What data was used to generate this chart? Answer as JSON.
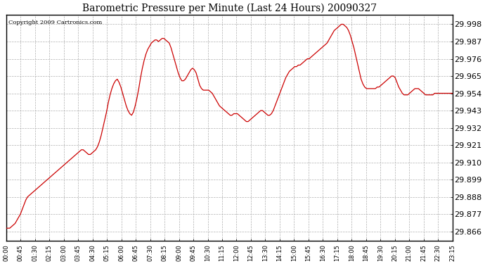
{
  "title": "Barometric Pressure per Minute (Last 24 Hours) 20090327",
  "copyright": "Copyright 2009 Cartronics.com",
  "line_color": "#cc0000",
  "bg_color": "#ffffff",
  "plot_bg_color": "#ffffff",
  "grid_color": "#b0b0b0",
  "yticks": [
    29.866,
    29.877,
    29.888,
    29.899,
    29.91,
    29.921,
    29.932,
    29.943,
    29.954,
    29.965,
    29.976,
    29.987,
    29.998
  ],
  "ylim": [
    29.86,
    30.004
  ],
  "xtick_labels": [
    "00:00",
    "00:45",
    "01:30",
    "02:15",
    "03:00",
    "03:45",
    "04:30",
    "05:15",
    "06:00",
    "06:45",
    "07:30",
    "08:15",
    "09:00",
    "09:45",
    "10:30",
    "11:15",
    "12:00",
    "12:45",
    "13:30",
    "14:15",
    "15:00",
    "15:45",
    "16:30",
    "17:15",
    "18:00",
    "18:45",
    "19:30",
    "20:15",
    "21:00",
    "21:45",
    "22:30",
    "23:15"
  ],
  "pressure_data": [
    29.868,
    29.868,
    29.868,
    29.869,
    29.87,
    29.871,
    29.873,
    29.875,
    29.877,
    29.88,
    29.883,
    29.886,
    29.888,
    29.889,
    29.89,
    29.891,
    29.892,
    29.893,
    29.894,
    29.895,
    29.896,
    29.897,
    29.898,
    29.899,
    29.9,
    29.901,
    29.902,
    29.903,
    29.904,
    29.905,
    29.906,
    29.907,
    29.908,
    29.909,
    29.91,
    29.911,
    29.912,
    29.913,
    29.914,
    29.915,
    29.916,
    29.917,
    29.918,
    29.918,
    29.917,
    29.916,
    29.915,
    29.915,
    29.916,
    29.917,
    29.918,
    29.92,
    29.923,
    29.927,
    29.932,
    29.937,
    29.942,
    29.948,
    29.953,
    29.957,
    29.96,
    29.962,
    29.963,
    29.961,
    29.958,
    29.954,
    29.95,
    29.946,
    29.943,
    29.941,
    29.94,
    29.942,
    29.946,
    29.951,
    29.957,
    29.964,
    29.97,
    29.975,
    29.979,
    29.982,
    29.984,
    29.986,
    29.987,
    29.988,
    29.988,
    29.987,
    29.988,
    29.989,
    29.989,
    29.988,
    29.987,
    29.986,
    29.983,
    29.979,
    29.975,
    29.971,
    29.967,
    29.964,
    29.962,
    29.962,
    29.963,
    29.965,
    29.967,
    29.969,
    29.97,
    29.969,
    29.967,
    29.963,
    29.959,
    29.957,
    29.956,
    29.956,
    29.956,
    29.956,
    29.955,
    29.954,
    29.952,
    29.95,
    29.948,
    29.946,
    29.945,
    29.944,
    29.943,
    29.942,
    29.941,
    29.94,
    29.94,
    29.941,
    29.941,
    29.941,
    29.94,
    29.939,
    29.938,
    29.937,
    29.936,
    29.936,
    29.937,
    29.938,
    29.939,
    29.94,
    29.941,
    29.942,
    29.943,
    29.943,
    29.942,
    29.941,
    29.94,
    29.94,
    29.941,
    29.943,
    29.946,
    29.949,
    29.952,
    29.955,
    29.958,
    29.961,
    29.964,
    29.966,
    29.968,
    29.969,
    29.97,
    29.971,
    29.971,
    29.972,
    29.972,
    29.973,
    29.974,
    29.975,
    29.976,
    29.976,
    29.977,
    29.978,
    29.979,
    29.98,
    29.981,
    29.982,
    29.983,
    29.984,
    29.985,
    29.986,
    29.988,
    29.99,
    29.992,
    29.994,
    29.995,
    29.996,
    29.997,
    29.998,
    29.998,
    29.997,
    29.996,
    29.994,
    29.991,
    29.987,
    29.983,
    29.978,
    29.973,
    29.968,
    29.963,
    29.96,
    29.958,
    29.957,
    29.957,
    29.957,
    29.957,
    29.957,
    29.957,
    29.958,
    29.958,
    29.959,
    29.96,
    29.961,
    29.962,
    29.963,
    29.964,
    29.965,
    29.965,
    29.964,
    29.961,
    29.958,
    29.956,
    29.954,
    29.953,
    29.953,
    29.953,
    29.954,
    29.955,
    29.956,
    29.957,
    29.957,
    29.957,
    29.956,
    29.955,
    29.954,
    29.953,
    29.953,
    29.953,
    29.953,
    29.953,
    29.954,
    29.954,
    29.954,
    29.954,
    29.954,
    29.954,
    29.954,
    29.954,
    29.954,
    29.954,
    29.954
  ]
}
